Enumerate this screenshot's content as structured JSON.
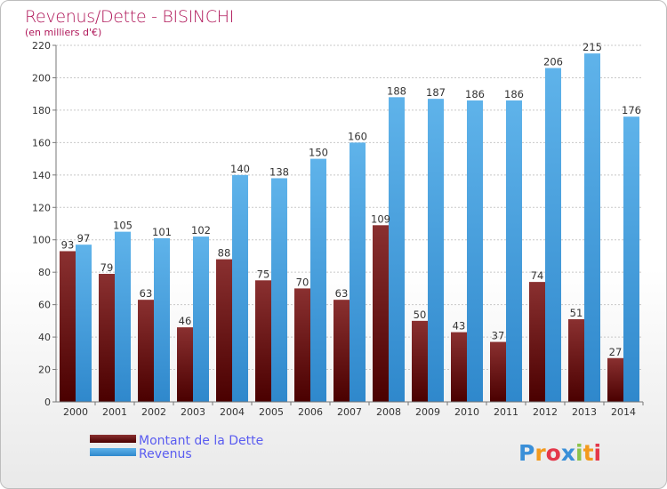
{
  "chart_data": {
    "type": "bar",
    "title": "Revenus/Dette - BISINCHI",
    "subtitle": "(en milliers d'€)",
    "categories": [
      "2000",
      "2001",
      "2002",
      "2003",
      "2004",
      "2005",
      "2006",
      "2007",
      "2008",
      "2009",
      "2010",
      "2011",
      "2012",
      "2013",
      "2014"
    ],
    "series": [
      {
        "name": "Montant de la Dette",
        "color": "#7a1a1a",
        "values": [
          93,
          79,
          63,
          46,
          88,
          75,
          70,
          63,
          109,
          50,
          43,
          37,
          74,
          51,
          27
        ]
      },
      {
        "name": "Revenus",
        "color": "#3a9ce0",
        "values": [
          97,
          105,
          101,
          102,
          140,
          138,
          150,
          160,
          188,
          187,
          186,
          186,
          206,
          215,
          176
        ]
      }
    ],
    "ylim": [
      0,
      220
    ],
    "yticks": [
      0,
      20,
      40,
      60,
      80,
      100,
      120,
      140,
      160,
      180,
      200,
      220
    ],
    "grid": true,
    "legend_position": "bottom-left"
  },
  "logo": {
    "letters": [
      "P",
      "r",
      "o",
      "x",
      "i",
      "t",
      "i"
    ],
    "colors": [
      "#3a8fd8",
      "#f39a1d",
      "#e4374a",
      "#3a8fd8",
      "#8bc34a",
      "#f39a1d",
      "#e4374a"
    ]
  }
}
